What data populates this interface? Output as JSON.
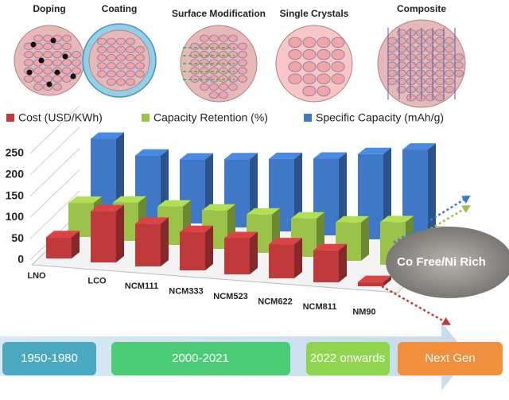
{
  "strategies": [
    "Doping",
    "Coating",
    "Surface Modification",
    "Single Crystals",
    "Composite"
  ],
  "timeline": [
    "1950-1980",
    "2000-2021",
    "2022 onwards",
    "Next Gen"
  ],
  "chart_data": {
    "type": "bar3d",
    "categories": [
      "LNO",
      "LCO",
      "NCM111",
      "NCM333",
      "NCM523",
      "NCM622",
      "NCM811",
      "NM90"
    ],
    "series": [
      {
        "name": "Cost (USD/KWh)",
        "color": "#c0393b",
        "values": [
          50,
          120,
          100,
          90,
          85,
          80,
          75,
          10
        ]
      },
      {
        "name": "Capacity Retention (%)",
        "color": "#9bc34a",
        "values": [
          80,
          90,
          90,
          90,
          90,
          90,
          90,
          100
        ]
      },
      {
        "name": "Specific Capacity (mAh/g)",
        "color": "#3f78c6",
        "values": [
          180,
          150,
          150,
          160,
          170,
          180,
          200,
          220
        ]
      }
    ],
    "ylim": [
      0,
      250
    ],
    "yticks": [
      0,
      50,
      100,
      150,
      200,
      250
    ],
    "annotation": "Co Free/Ni Rich"
  }
}
